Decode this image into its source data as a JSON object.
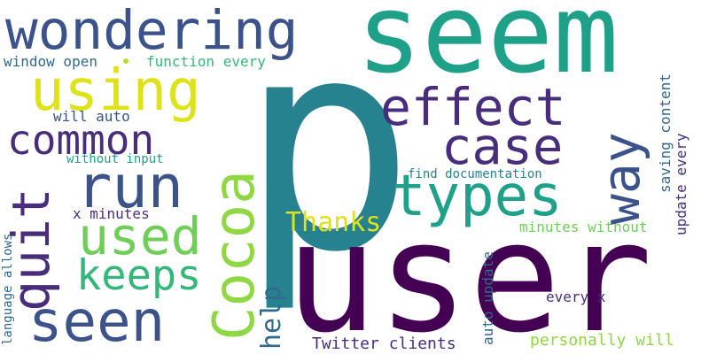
{
  "palette": {
    "dark_purple": "#440154",
    "indigo": "#472d7b",
    "blue": "#3b528b",
    "steel_blue": "#31688e",
    "teal": "#26828e",
    "aqua": "#1fa088",
    "green": "#35b779",
    "lime": "#6ece58",
    "light_lime": "#8fd744",
    "yellow_green": "#b5de2b",
    "yellow": "#dde318"
  },
  "words": [
    {
      "text": "p",
      "color": "#26828e",
      "icon": ""
    },
    {
      "text": "user",
      "color": "#440154"
    },
    {
      "text": "seem",
      "color": "#1fa088"
    },
    {
      "text": "wondering",
      "color": "#3b528b"
    },
    {
      "text": "using",
      "color": "#dde318"
    },
    {
      "text": "effect",
      "color": "#472d7b"
    },
    {
      "text": "case",
      "color": "#472d7b"
    },
    {
      "text": "common",
      "color": "#472d7b"
    },
    {
      "text": "run",
      "color": "#3b528b"
    },
    {
      "text": "types",
      "color": "#1fa088"
    },
    {
      "text": "way",
      "color": "#3b528b"
    },
    {
      "text": "quit",
      "color": "#472d7b"
    },
    {
      "text": "used",
      "color": "#6ece58"
    },
    {
      "text": "keeps",
      "color": "#35b779"
    },
    {
      "text": "seen",
      "color": "#3b528b"
    },
    {
      "text": "Cocoa",
      "color": "#8fd744"
    },
    {
      "text": "Thanks",
      "color": "#dde318"
    },
    {
      "text": "help",
      "color": "#31688e"
    },
    {
      "text": "window open",
      "color": "#31688e"
    },
    {
      "text": "function every",
      "color": "#35b779"
    },
    {
      "text": "will auto",
      "color": "#3b528b"
    },
    {
      "text": "without input",
      "color": "#1fa088"
    },
    {
      "text": "x minutes",
      "color": "#472d7b"
    },
    {
      "text": "find documentation",
      "color": "#26828e"
    },
    {
      "text": "minutes without",
      "color": "#6ece58"
    },
    {
      "text": "every x",
      "color": "#472d7b"
    },
    {
      "text": "Twitter clients",
      "color": "#472d7b"
    },
    {
      "text": "personally will",
      "color": "#8fd744"
    },
    {
      "text": "language allows",
      "color": "#31688e"
    },
    {
      "text": "auto update",
      "color": "#31688e"
    },
    {
      "text": "saving content",
      "color": "#31688e"
    },
    {
      "text": "update every",
      "color": "#472d7b"
    }
  ],
  "accent_dot_color": "#b5de2b"
}
